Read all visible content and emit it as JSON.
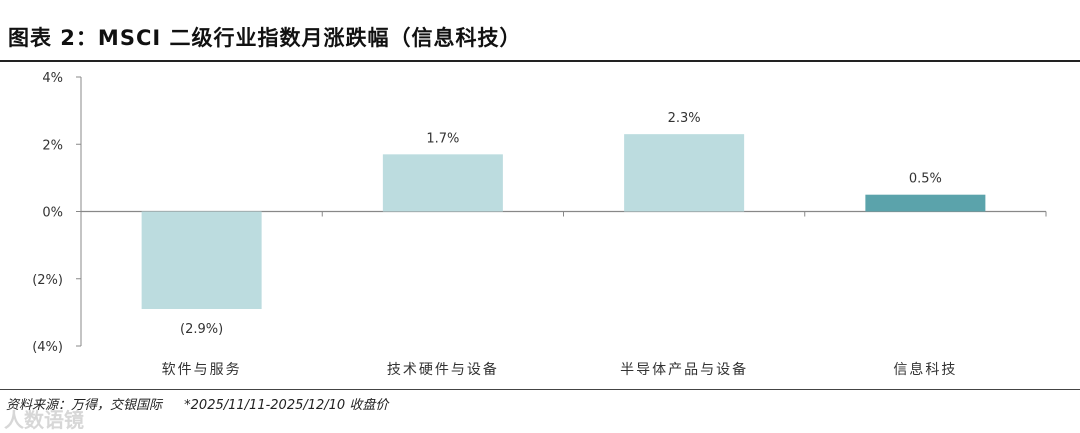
{
  "header": {
    "title": "图表 2：MSCI 二级行业指数月涨跌幅（信息科技）"
  },
  "footer": {
    "source": "资料来源：万得，交银国际",
    "note": "*2025/11/11-2025/12/10 收盘价"
  },
  "watermark": "人数语镜",
  "colors": {
    "light_bar": "#bcdcdf",
    "highlight_bar": "#5ba3ab",
    "axis": "#888888"
  },
  "chart_data": {
    "type": "bar",
    "categories": [
      "软件与服务",
      "技术硬件与设备",
      "半导体产品与设备",
      "信息科技"
    ],
    "values": [
      -2.9,
      1.7,
      2.3,
      0.5
    ],
    "data_labels": [
      "(2.9%)",
      "1.7%",
      "2.3%",
      "0.5%"
    ],
    "highlight_index": 3,
    "ylim": [
      -4,
      4
    ],
    "yticks": [
      4,
      2,
      0,
      -2,
      -4
    ],
    "ytick_labels": [
      "4%",
      "2%",
      "0%",
      "(2%)",
      "(4%)"
    ],
    "title": "",
    "xlabel": "",
    "ylabel": "",
    "grid": false,
    "legend": "none"
  }
}
